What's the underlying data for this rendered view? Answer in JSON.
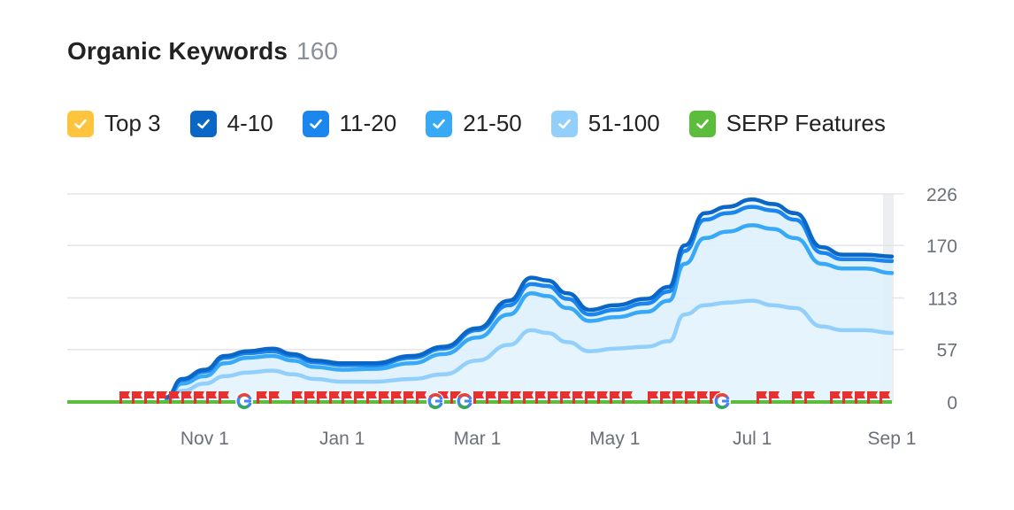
{
  "header": {
    "title": "Organic Keywords",
    "count": "160"
  },
  "legend": [
    {
      "label": "Top 3",
      "color": "#ffc43d",
      "icon": "checkbox-checked-icon"
    },
    {
      "label": "4-10",
      "color": "#0a66c7",
      "icon": "checkbox-checked-icon"
    },
    {
      "label": "11-20",
      "color": "#1a86ee",
      "icon": "checkbox-checked-icon"
    },
    {
      "label": "21-50",
      "color": "#38a9f7",
      "icon": "checkbox-checked-icon"
    },
    {
      "label": "51-100",
      "color": "#92d0fb",
      "icon": "checkbox-checked-icon"
    },
    {
      "label": "SERP Features",
      "color": "#5bbd3b",
      "icon": "checkbox-checked-icon"
    }
  ],
  "chart_data": {
    "type": "area",
    "title": "Organic Keywords",
    "x_ticks": [
      "Nov 1",
      "Jan 1",
      "Mar 1",
      "May 1",
      "Jul 1",
      "Sep 1"
    ],
    "y_ticks": [
      0,
      57,
      113,
      170,
      226
    ],
    "ylim": [
      0,
      226
    ],
    "x": [
      "2023-10-15",
      "2023-10-22",
      "2023-11-01",
      "2023-11-10",
      "2023-11-20",
      "2023-12-01",
      "2023-12-10",
      "2023-12-20",
      "2024-01-01",
      "2024-01-15",
      "2024-02-01",
      "2024-02-15",
      "2024-03-01",
      "2024-03-15",
      "2024-03-25",
      "2024-04-01",
      "2024-04-10",
      "2024-04-20",
      "2024-05-01",
      "2024-05-15",
      "2024-05-25",
      "2024-06-01",
      "2024-06-10",
      "2024-06-20",
      "2024-07-01",
      "2024-07-10",
      "2024-07-20",
      "2024-08-01",
      "2024-08-10",
      "2024-08-20",
      "2024-09-01"
    ],
    "series": [
      {
        "name": "4-10",
        "color": "#0a66c7",
        "values": [
          5,
          25,
          35,
          50,
          55,
          58,
          52,
          45,
          42,
          42,
          50,
          60,
          80,
          110,
          135,
          132,
          118,
          100,
          105,
          112,
          125,
          170,
          205,
          212,
          220,
          215,
          205,
          168,
          160,
          160,
          158
        ]
      },
      {
        "name": "11-20",
        "color": "#1a86ee",
        "values": [
          5,
          24,
          33,
          48,
          53,
          55,
          50,
          43,
          40,
          40,
          48,
          58,
          78,
          105,
          128,
          126,
          112,
          95,
          100,
          107,
          120,
          164,
          198,
          205,
          212,
          208,
          198,
          162,
          155,
          155,
          153
        ]
      },
      {
        "name": "21-50",
        "color": "#38a9f7",
        "values": [
          3,
          20,
          28,
          42,
          48,
          50,
          45,
          38,
          35,
          36,
          42,
          52,
          70,
          95,
          118,
          115,
          102,
          88,
          92,
          98,
          110,
          150,
          178,
          185,
          192,
          188,
          178,
          150,
          145,
          145,
          140
        ]
      },
      {
        "name": "51-100",
        "color": "#92d0fb",
        "values": [
          2,
          12,
          20,
          28,
          32,
          34,
          30,
          25,
          22,
          22,
          25,
          30,
          45,
          62,
          78,
          75,
          65,
          55,
          58,
          60,
          66,
          95,
          105,
          108,
          110,
          105,
          102,
          82,
          78,
          78,
          75
        ]
      }
    ],
    "serp_features": 160,
    "legend_position": "top",
    "grid": true
  }
}
